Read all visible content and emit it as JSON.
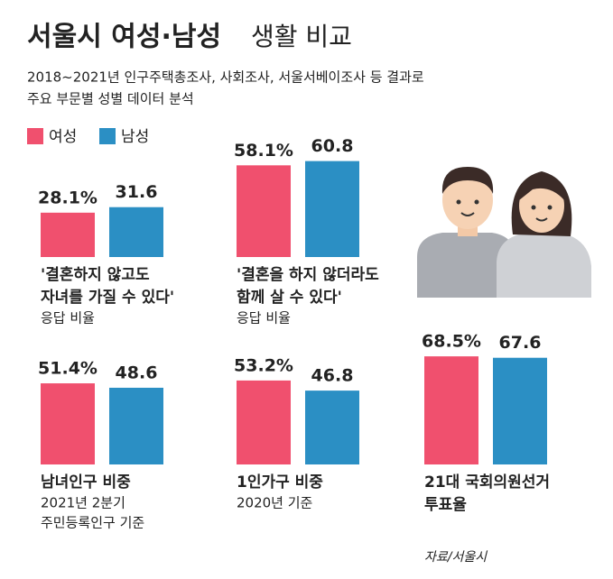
{
  "header": {
    "title": [
      "서울시 여성·남성",
      "생활 비교"
    ],
    "subtitle": [
      "2018~2021년 인구주택총조사, 사회조사, 서울서베이조사 등 결과로",
      "주요 부문별 성별 데이터 분석"
    ]
  },
  "legend": [
    {
      "name": "여성",
      "color": "#f0506e"
    },
    {
      "name": "남성",
      "color": "#2b8fc4"
    }
  ],
  "chart_data": [
    {
      "type": "bar",
      "values": [
        28.1,
        31.6
      ],
      "value_labels": [
        "28.1%",
        "31.6"
      ],
      "colors": [
        "#f0506e",
        "#2b8fc4"
      ],
      "label": [
        "'결혼하지 않고도",
        "자녀를 가질 수 있다'"
      ],
      "note": [
        "응답 비율"
      ]
    },
    {
      "type": "bar",
      "values": [
        58.1,
        60.8
      ],
      "value_labels": [
        "58.1%",
        "60.8"
      ],
      "colors": [
        "#f0506e",
        "#2b8fc4"
      ],
      "label": [
        "'결혼을 하지 않더라도",
        "함께 살 수 있다'"
      ],
      "note": [
        "응답 비율"
      ]
    },
    {
      "type": "bar",
      "values": [
        51.4,
        48.6
      ],
      "value_labels": [
        "51.4%",
        "48.6"
      ],
      "colors": [
        "#f0506e",
        "#2b8fc4"
      ],
      "label": [
        "남녀인구 비중"
      ],
      "note": [
        "2021년 2분기",
        "주민등록인구 기준"
      ]
    },
    {
      "type": "bar",
      "values": [
        53.2,
        46.8
      ],
      "value_labels": [
        "53.2%",
        "46.8"
      ],
      "colors": [
        "#f0506e",
        "#2b8fc4"
      ],
      "label": [
        "1인가구 비중"
      ],
      "note": [
        "2020년 기준"
      ]
    },
    {
      "type": "bar",
      "values": [
        68.5,
        67.6
      ],
      "value_labels": [
        "68.5%",
        "67.6"
      ],
      "colors": [
        "#f0506e",
        "#2b8fc4"
      ],
      "label": [
        "21대 국회의원선거",
        "투표율"
      ],
      "note": []
    }
  ],
  "source": "자료/서울시"
}
